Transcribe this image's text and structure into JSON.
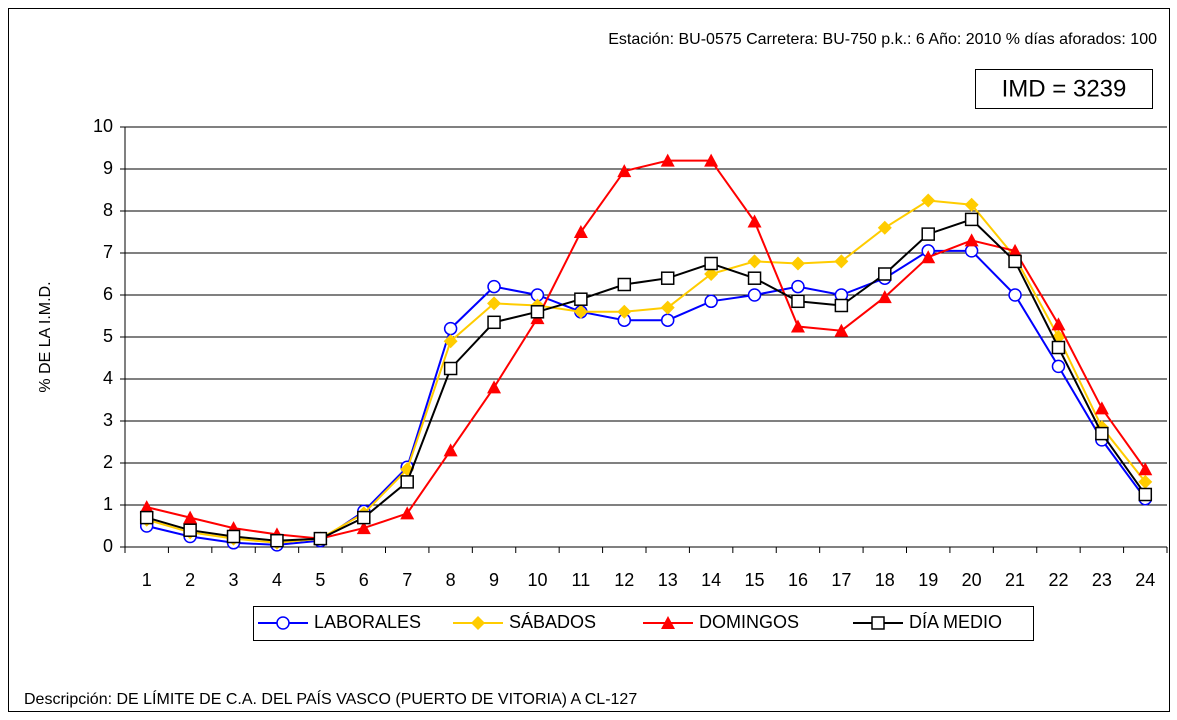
{
  "chart_data": {
    "type": "line",
    "subtitle": "Estación: BU-0575   Carretera: BU-750   p.k.: 6   Año: 2010   % días aforados: 100",
    "annotations": [
      "IMD = 3239",
      "Descripción: DE LÍMITE DE C.A. DEL PAÍS VASCO (PUERTO DE VITORIA) A  CL-127"
    ],
    "y_label": "% DE LA I.M.D.",
    "categories": [
      "1",
      "2",
      "3",
      "4",
      "5",
      "6",
      "7",
      "8",
      "9",
      "10",
      "11",
      "12",
      "13",
      "14",
      "15",
      "16",
      "17",
      "18",
      "19",
      "20",
      "21",
      "22",
      "23",
      "24"
    ],
    "series": [
      {
        "name": "LABORALES",
        "color": "#0000ff",
        "marker": "circle",
        "values": [
          0.5,
          0.25,
          0.1,
          0.05,
          0.15,
          0.85,
          1.9,
          5.2,
          6.2,
          6.0,
          5.6,
          5.4,
          5.4,
          5.85,
          6.0,
          6.2,
          6.0,
          6.4,
          7.05,
          7.05,
          6.0,
          4.3,
          2.55,
          1.15
        ]
      },
      {
        "name": "SÁBADOS",
        "color": "#ffcc00",
        "marker": "diamond",
        "values": [
          0.65,
          0.35,
          0.2,
          0.1,
          0.2,
          0.8,
          1.85,
          4.9,
          5.8,
          5.75,
          5.6,
          5.6,
          5.7,
          6.5,
          6.8,
          6.75,
          6.8,
          7.6,
          8.25,
          8.15,
          6.9,
          5.0,
          2.85,
          1.55
        ]
      },
      {
        "name": "DOMINGOS",
        "color": "#ff0000",
        "marker": "triangle",
        "values": [
          0.95,
          0.7,
          0.45,
          0.3,
          0.2,
          0.45,
          0.8,
          2.3,
          3.8,
          5.45,
          7.5,
          8.95,
          9.2,
          9.2,
          7.75,
          5.25,
          5.15,
          5.95,
          6.9,
          7.3,
          7.05,
          5.3,
          3.3,
          1.85
        ]
      },
      {
        "name": "DÍA MEDIO",
        "color": "#000000",
        "marker": "square",
        "values": [
          0.7,
          0.4,
          0.25,
          0.15,
          0.2,
          0.7,
          1.55,
          4.25,
          5.35,
          5.6,
          5.9,
          6.25,
          6.4,
          6.75,
          6.4,
          5.85,
          5.75,
          6.5,
          7.45,
          7.8,
          6.8,
          4.75,
          2.7,
          1.25
        ]
      }
    ],
    "ylim": [
      0,
      10
    ],
    "yticks": [
      0,
      1,
      2,
      3,
      4,
      5,
      6,
      7,
      8,
      9,
      10
    ],
    "grid": true,
    "legend": "bottom"
  }
}
